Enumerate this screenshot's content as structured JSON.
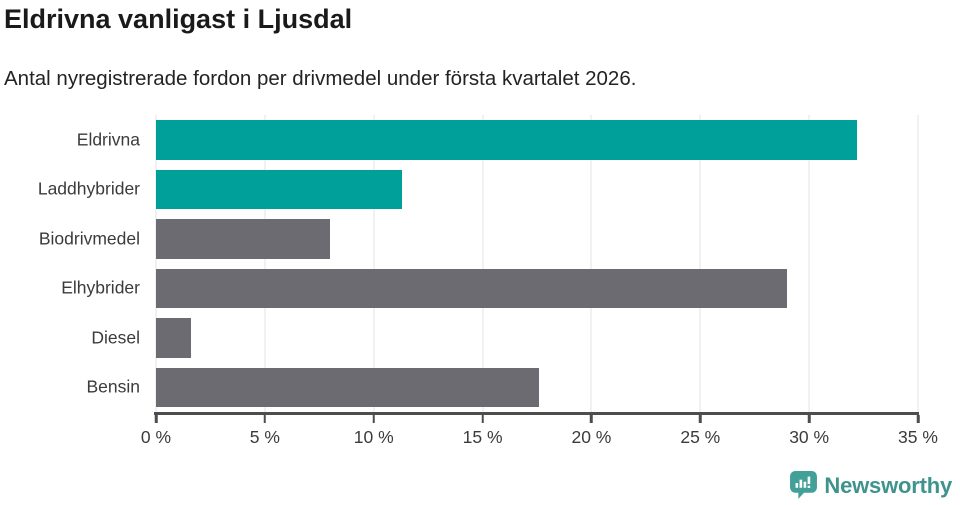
{
  "chart_data": {
    "type": "bar",
    "orientation": "horizontal",
    "title": "Eldrivna vanligast i Ljusdal",
    "subtitle": "Antal nyregistrerade fordon per drivmedel under första kvartalet 2026.",
    "categories": [
      "Eldrivna",
      "Laddhybrider",
      "Biodrivmedel",
      "Elhybrider",
      "Diesel",
      "Bensin"
    ],
    "values": [
      32.2,
      11.3,
      8.0,
      29.0,
      1.6,
      17.6
    ],
    "unit": "%",
    "bar_colors": [
      "#00a09a",
      "#00a09a",
      "#6c6b72",
      "#6c6b72",
      "#6c6b72",
      "#6c6b72"
    ],
    "xlabel": "",
    "ylabel": "",
    "xlim": [
      0,
      35
    ],
    "x_ticks": [
      "0 %",
      "5 %",
      "10 %",
      "15 %",
      "20 %",
      "25 %",
      "30 %",
      "35 %"
    ],
    "x_tick_values": [
      0,
      5,
      10,
      15,
      20,
      25,
      30,
      35
    ],
    "grid": true,
    "legend": false
  },
  "colors": {
    "accent_teal": "#00a09a",
    "bar_gray": "#6c6b72",
    "axis": "#4d4d4d",
    "gridline": "#e3e3e3",
    "title_text": "#1a1a1a",
    "body_text": "#3b3b3b",
    "brand_teal": "#3f938d"
  },
  "footer": {
    "brand": "Newsworthy",
    "logo_icon": "speech-bubble-bar-chart-icon"
  }
}
